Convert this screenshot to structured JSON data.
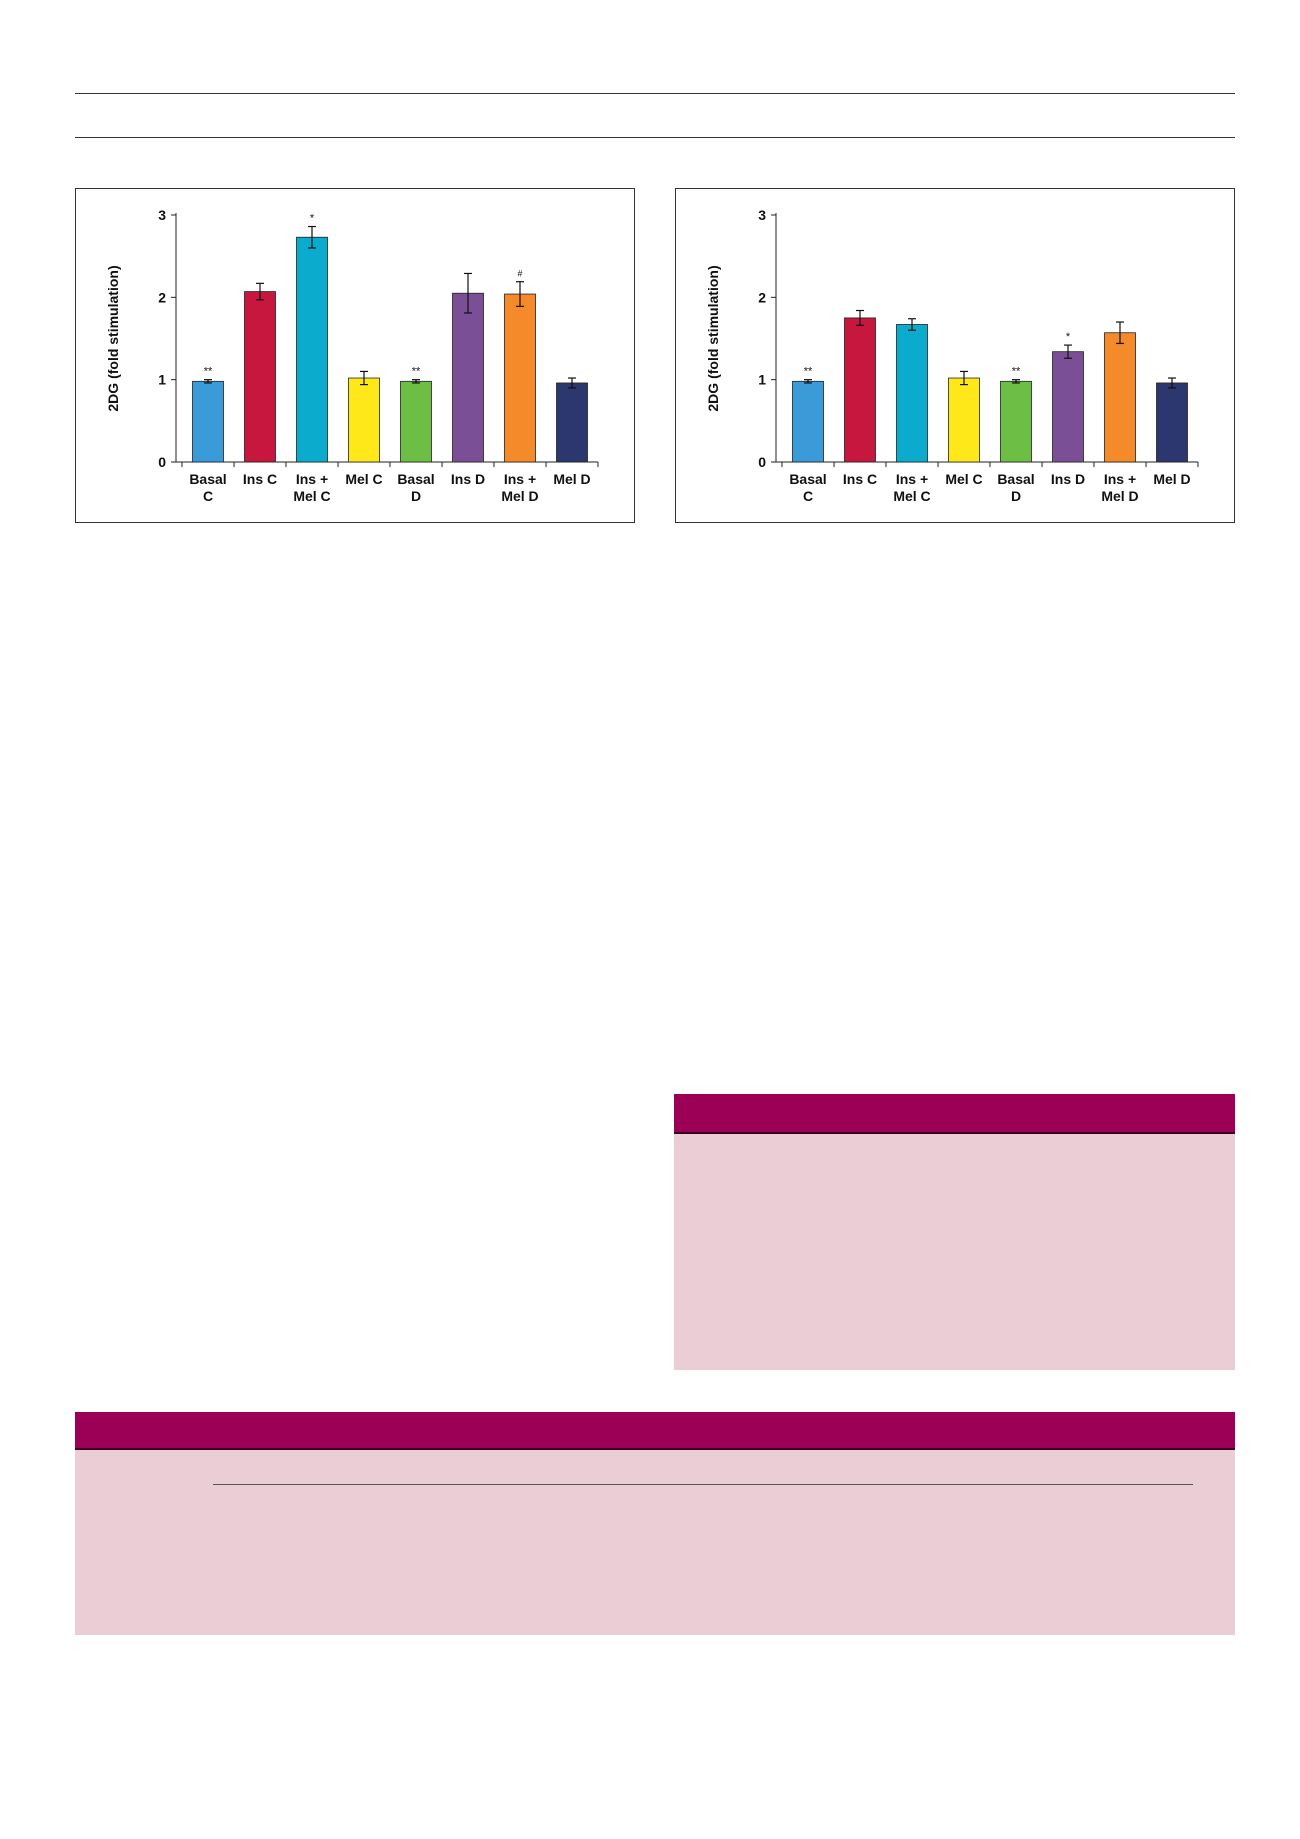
{
  "colors": {
    "table_header": "#9c0056",
    "table_body": "#ebcdd6",
    "rule": "#333333"
  },
  "chart_data": [
    {
      "type": "bar",
      "ylabel": "2DG (fold stimulation)",
      "ylim": [
        0,
        3
      ],
      "yticks": [
        "0",
        "1",
        "2",
        "3"
      ],
      "categories": [
        [
          "Basal",
          "C"
        ],
        [
          "Ins C"
        ],
        [
          "Ins +",
          "Mel C"
        ],
        [
          "Mel C"
        ],
        [
          "Basal",
          "D"
        ],
        [
          "Ins D"
        ],
        [
          "Ins +",
          "Mel D"
        ],
        [
          "Mel D"
        ]
      ],
      "values": [
        0.98,
        2.07,
        2.73,
        1.02,
        0.98,
        2.05,
        2.04,
        0.96
      ],
      "errors": [
        0.02,
        0.1,
        0.13,
        0.08,
        0.02,
        0.24,
        0.15,
        0.06
      ],
      "annotations": [
        "**",
        "",
        "*",
        "",
        "**",
        "",
        "#",
        ""
      ],
      "colors": [
        "#3a9bd8",
        "#c8173f",
        "#0aabcc",
        "#ffe81a",
        "#6cbe45",
        "#7b4f96",
        "#f58a2a",
        "#2c3770"
      ]
    },
    {
      "type": "bar",
      "ylabel": "2DG (fold stimulation)",
      "ylim": [
        0,
        3
      ],
      "yticks": [
        "0",
        "1",
        "2",
        "3"
      ],
      "categories": [
        [
          "Basal",
          "C"
        ],
        [
          "Ins C"
        ],
        [
          "Ins +",
          "Mel C"
        ],
        [
          "Mel C"
        ],
        [
          "Basal",
          "D"
        ],
        [
          "Ins D"
        ],
        [
          "Ins +",
          "Mel D"
        ],
        [
          "Mel D"
        ]
      ],
      "values": [
        0.98,
        1.75,
        1.67,
        1.02,
        0.98,
        1.34,
        1.57,
        0.96
      ],
      "errors": [
        0.02,
        0.09,
        0.07,
        0.08,
        0.02,
        0.08,
        0.13,
        0.06
      ],
      "annotations": [
        "**",
        "",
        "",
        "",
        "**",
        "*",
        "",
        ""
      ],
      "colors": [
        "#3a9bd8",
        "#c8173f",
        "#0aabcc",
        "#ffe81a",
        "#6cbe45",
        "#7b4f96",
        "#f58a2a",
        "#2c3770"
      ]
    }
  ]
}
